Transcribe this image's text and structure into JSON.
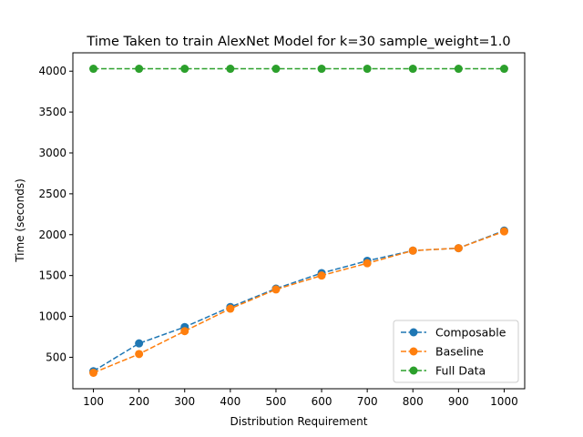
{
  "chart_data": {
    "type": "line",
    "title": "Time Taken to train AlexNet Model for k=30 sample_weight=1.0",
    "xlabel": "Distribution Requirement",
    "ylabel": "Time (seconds)",
    "x": [
      100,
      200,
      300,
      400,
      500,
      600,
      700,
      800,
      900,
      1000
    ],
    "xlim": [
      55,
      1045
    ],
    "ylim": [
      115,
      4225
    ],
    "xticks": [
      100,
      200,
      300,
      400,
      500,
      600,
      700,
      800,
      900,
      1000
    ],
    "yticks": [
      500,
      1000,
      1500,
      2000,
      2500,
      3000,
      3500,
      4000
    ],
    "grid": false,
    "legend_position": "lower-right",
    "series": [
      {
        "name": "Composable",
        "color": "#1f77b4",
        "values": [
          330,
          670,
          870,
          1115,
          1340,
          1530,
          1680,
          1805,
          1835,
          2050
        ]
      },
      {
        "name": "Baseline",
        "color": "#ff7f0e",
        "values": [
          310,
          540,
          820,
          1095,
          1330,
          1500,
          1650,
          1805,
          1835,
          2040
        ]
      },
      {
        "name": "Full Data",
        "color": "#2ca02c",
        "values": [
          4030,
          4030,
          4030,
          4030,
          4030,
          4030,
          4030,
          4030,
          4030,
          4030
        ]
      }
    ]
  }
}
